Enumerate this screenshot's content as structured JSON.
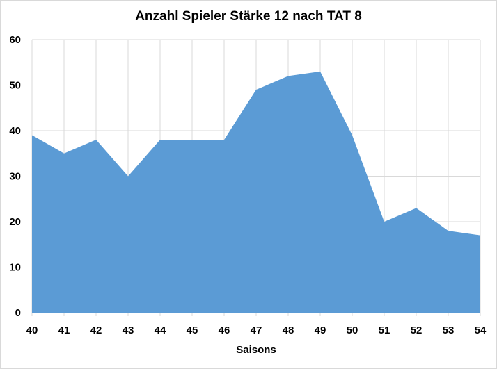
{
  "chart_data": {
    "type": "area",
    "title": "Anzahl Spieler Stärke 12 nach TAT 8",
    "xlabel": "Saisons",
    "ylabel": "",
    "categories": [
      "40",
      "41",
      "42",
      "43",
      "44",
      "45",
      "46",
      "47",
      "48",
      "49",
      "50",
      "51",
      "52",
      "53",
      "54"
    ],
    "series": [
      {
        "values": [
          39,
          35,
          38,
          30,
          38,
          38,
          38,
          49,
          52,
          53,
          39,
          20,
          23,
          18,
          17
        ]
      }
    ],
    "ylim": [
      0,
      60
    ],
    "yticks": [
      "0",
      "10",
      "20",
      "30",
      "40",
      "50",
      "60"
    ],
    "grid": true,
    "legend": "none",
    "colors": {
      "series": "#5b9bd5",
      "grid": "#d9d9d9"
    }
  }
}
